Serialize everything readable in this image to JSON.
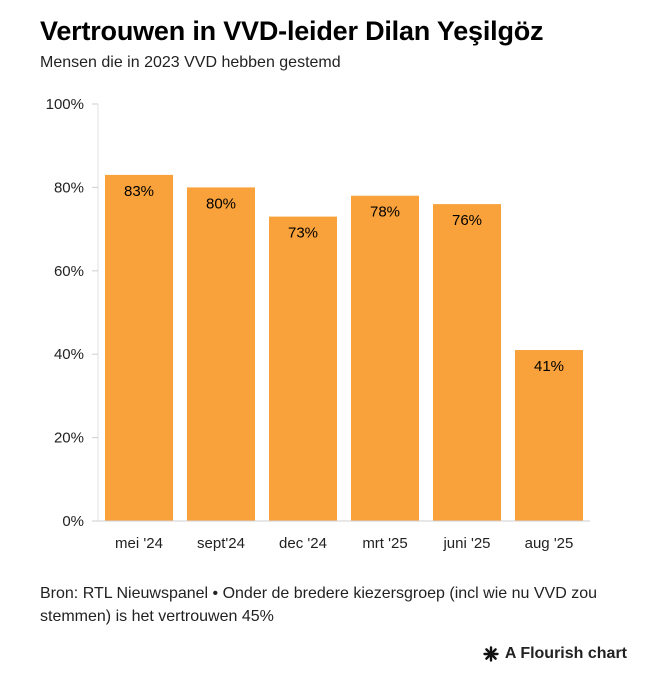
{
  "title": "Vertrouwen in VVD-leider Dilan Yeşilgöz",
  "subtitle": "Mensen die in 2023 VVD hebben gestemd",
  "source": "Bron: RTL Nieuwspanel • Onder de bredere kiezersgroep (incl wie nu VVD zou stemmen) is het vertrouwen 45%",
  "brand": {
    "label": "A Flourish chart",
    "icon": "asterisk-icon"
  },
  "colors": {
    "bar": "#F9A23C",
    "grid": "#dddddd",
    "axis": "#999999"
  },
  "chart_data": {
    "type": "bar",
    "categories": [
      "mei '24",
      "sept'24",
      "dec '24",
      "mrt '25",
      "juni '25",
      "aug '25"
    ],
    "values": [
      83,
      80,
      73,
      78,
      76,
      41
    ],
    "value_labels": [
      "83%",
      "80%",
      "73%",
      "78%",
      "76%",
      "41%"
    ],
    "y_ticks": [
      "0%",
      "20%",
      "40%",
      "60%",
      "80%",
      "100%"
    ],
    "ylim": [
      0,
      100
    ],
    "grid": false,
    "legend": "none"
  }
}
